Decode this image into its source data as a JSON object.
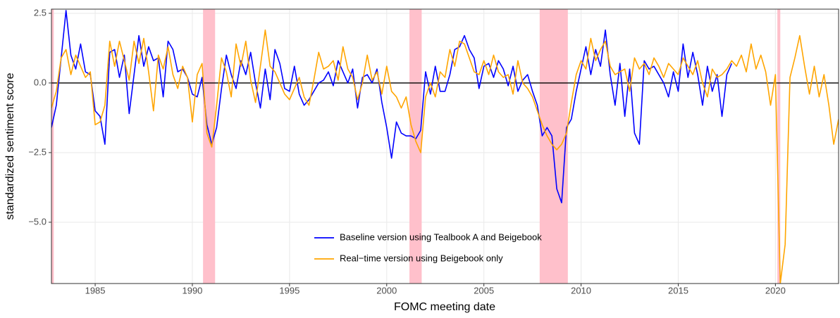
{
  "chart_data": {
    "type": "line",
    "x_label": "FOMC meeting date",
    "y_label": "standardized sentiment score",
    "xlim": [
      1982.75,
      2023.25
    ],
    "ylim": [
      -7.2,
      2.65
    ],
    "xticks": [
      1985,
      1990,
      1995,
      2000,
      2005,
      2010,
      2015,
      2020
    ],
    "yticks": [
      2.5,
      {
        "value": 0,
        "label": "0.0"
      },
      {
        "value": -2.5,
        "label": "−2.5"
      },
      {
        "value": -5,
        "label": "−5.0"
      }
    ],
    "grid": true,
    "hline": 0,
    "hline_color": "#000000",
    "shaded_periods": [
      [
        1982.6,
        1982.87
      ],
      [
        1990.55,
        1991.17
      ],
      [
        2001.17,
        2001.8
      ],
      [
        2007.87,
        2009.32
      ],
      [
        2020.1,
        2020.25
      ]
    ],
    "shade_color": "#FFC0CB",
    "legend_position": "bottom",
    "x": [
      1982.75,
      1983,
      1983.25,
      1983.5,
      1983.75,
      1984,
      1984.25,
      1984.5,
      1984.75,
      1985,
      1985.25,
      1985.5,
      1985.75,
      1986,
      1986.25,
      1986.5,
      1986.75,
      1987,
      1987.25,
      1987.5,
      1987.75,
      1988,
      1988.25,
      1988.5,
      1988.75,
      1989,
      1989.25,
      1989.5,
      1989.75,
      1990,
      1990.25,
      1990.5,
      1990.75,
      1991,
      1991.25,
      1991.5,
      1991.75,
      1992,
      1992.25,
      1992.5,
      1992.75,
      1993,
      1993.25,
      1993.5,
      1993.75,
      1994,
      1994.25,
      1994.5,
      1994.75,
      1995,
      1995.25,
      1995.5,
      1995.75,
      1996,
      1996.25,
      1996.5,
      1996.75,
      1997,
      1997.25,
      1997.5,
      1997.75,
      1998,
      1998.25,
      1998.5,
      1998.75,
      1999,
      1999.25,
      1999.5,
      1999.75,
      2000,
      2000.25,
      2000.5,
      2000.75,
      2001,
      2001.25,
      2001.5,
      2001.75,
      2002,
      2002.25,
      2002.5,
      2002.75,
      2003,
      2003.25,
      2003.5,
      2003.75,
      2004,
      2004.25,
      2004.5,
      2004.75,
      2005,
      2005.25,
      2005.5,
      2005.75,
      2006,
      2006.25,
      2006.5,
      2006.75,
      2007,
      2007.25,
      2007.5,
      2007.75,
      2008,
      2008.25,
      2008.5,
      2008.75,
      2009,
      2009.25,
      2009.5,
      2009.75,
      2010,
      2010.25,
      2010.5,
      2010.75,
      2011,
      2011.25,
      2011.5,
      2011.75,
      2012,
      2012.25,
      2012.5,
      2012.75,
      2013,
      2013.25,
      2013.5,
      2013.75,
      2014,
      2014.25,
      2014.5,
      2014.75,
      2015,
      2015.25,
      2015.5,
      2015.75,
      2016,
      2016.25,
      2016.5,
      2016.75,
      2017,
      2017.25,
      2017.5,
      2017.75,
      2018,
      2018.25,
      2018.5,
      2018.75,
      2019,
      2019.25,
      2019.5,
      2019.75,
      2020,
      2020.25,
      2020.5,
      2020.75,
      2021,
      2021.25,
      2021.5,
      2021.75,
      2022,
      2022.25,
      2022.5,
      2022.75,
      2023,
      2023.25
    ],
    "series": [
      {
        "name": "Baseline version using Tealbook A and Beigebook",
        "color": "#0000FF",
        "values": [
          -1.6,
          -0.8,
          0.9,
          2.6,
          1.0,
          0.5,
          1.4,
          0.4,
          0.3,
          -1.0,
          -1.2,
          -2.2,
          1.1,
          1.2,
          0.2,
          1.0,
          -1.1,
          0.3,
          1.7,
          0.6,
          1.3,
          0.8,
          0.9,
          -0.5,
          1.5,
          1.2,
          0.4,
          0.5,
          0.2,
          -0.4,
          -0.5,
          0.2,
          -1.5,
          -2.2,
          -1.6,
          -0.2,
          1.0,
          0.3,
          -0.2,
          0.8,
          0.3,
          1.1,
          0.0,
          -0.9,
          0.5,
          -0.6,
          1.2,
          0.7,
          -0.2,
          -0.3,
          0.6,
          -0.4,
          -0.8,
          -0.6,
          -0.3,
          0.0,
          0.1,
          0.4,
          -0.1,
          0.8,
          0.4,
          0.0,
          0.5,
          -0.9,
          0.2,
          0.3,
          0.0,
          0.5,
          -0.7,
          -1.6,
          -2.7,
          -1.4,
          -1.8,
          -1.9,
          -1.9,
          -2.0,
          -1.7,
          0.4,
          -0.4,
          0.6,
          -0.3,
          -0.3,
          0.3,
          1.2,
          1.3,
          1.7,
          1.2,
          0.9,
          -0.2,
          0.6,
          0.7,
          0.2,
          0.8,
          0.5,
          -0.1,
          0.6,
          -0.3,
          0.1,
          0.3,
          -0.3,
          -0.8,
          -1.9,
          -1.6,
          -1.9,
          -3.8,
          -4.3,
          -1.6,
          -1.3,
          -0.3,
          0.5,
          1.3,
          0.3,
          1.2,
          0.6,
          1.9,
          0.3,
          -0.8,
          0.7,
          -1.2,
          0.5,
          -1.8,
          -2.2,
          0.8,
          0.5,
          0.6,
          0.3,
          0.0,
          -0.5,
          0.4,
          -0.3,
          1.4,
          0.2,
          1.1,
          0.3,
          -0.8,
          0.6,
          -0.3,
          0.3,
          -1.2,
          0.3,
          0.7,
          null,
          null,
          null,
          null,
          null,
          null,
          null,
          null,
          null,
          null,
          null,
          null,
          null,
          null,
          null,
          null,
          null,
          null,
          null,
          null,
          null,
          null
        ]
      },
      {
        "name": "Real−time version using Beigebook only",
        "color": "#FFA500",
        "values": [
          -0.9,
          -0.3,
          0.9,
          1.2,
          0.3,
          1.0,
          0.6,
          0.2,
          0.4,
          -1.5,
          -1.4,
          -0.8,
          1.5,
          0.6,
          1.5,
          0.8,
          0.1,
          1.5,
          0.7,
          1.6,
          0.4,
          -1.0,
          1.0,
          0.5,
          1.3,
          0.3,
          -0.2,
          0.6,
          0.2,
          -1.4,
          0.3,
          0.7,
          -1.8,
          -2.3,
          -0.8,
          0.9,
          0.4,
          -0.5,
          1.4,
          0.6,
          1.5,
          0.1,
          -0.7,
          0.6,
          1.9,
          0.6,
          0.4,
          0.0,
          -0.4,
          -0.6,
          -0.2,
          0.2,
          -0.5,
          -0.8,
          0.1,
          1.1,
          0.5,
          0.6,
          0.8,
          0.1,
          1.3,
          0.5,
          0.2,
          -0.6,
          0.0,
          1.0,
          0.1,
          0.4,
          -0.4,
          0.6,
          -0.3,
          -0.5,
          -0.9,
          -0.5,
          -1.5,
          -2.1,
          -2.5,
          -0.5,
          0.0,
          -0.5,
          0.4,
          0.2,
          1.2,
          0.6,
          1.5,
          1.4,
          0.9,
          0.4,
          0.3,
          0.8,
          0.3,
          1.0,
          0.4,
          0.2,
          0.3,
          -0.4,
          0.8,
          0.0,
          -0.2,
          -0.5,
          -1.0,
          -1.5,
          -1.9,
          -2.2,
          -2.4,
          -2.2,
          -1.8,
          -0.7,
          0.3,
          0.8,
          0.5,
          1.6,
          0.8,
          1.2,
          1.5,
          0.6,
          0.3,
          0.4,
          0.5,
          -0.3,
          0.9,
          0.5,
          0.7,
          0.3,
          0.9,
          0.6,
          0.2,
          0.7,
          0.5,
          0.3,
          0.9,
          0.6,
          0.3,
          0.8,
          0.0,
          -0.5,
          0.5,
          0.2,
          0.3,
          0.5,
          0.8,
          0.6,
          1.0,
          0.4,
          1.4,
          0.5,
          1.0,
          0.4,
          -0.8,
          0.3,
          -7.2,
          -5.8,
          0.2,
          0.9,
          1.7,
          0.6,
          -0.4,
          0.6,
          -0.5,
          0.3,
          -0.8,
          -2.2,
          -1.3
        ]
      }
    ]
  }
}
